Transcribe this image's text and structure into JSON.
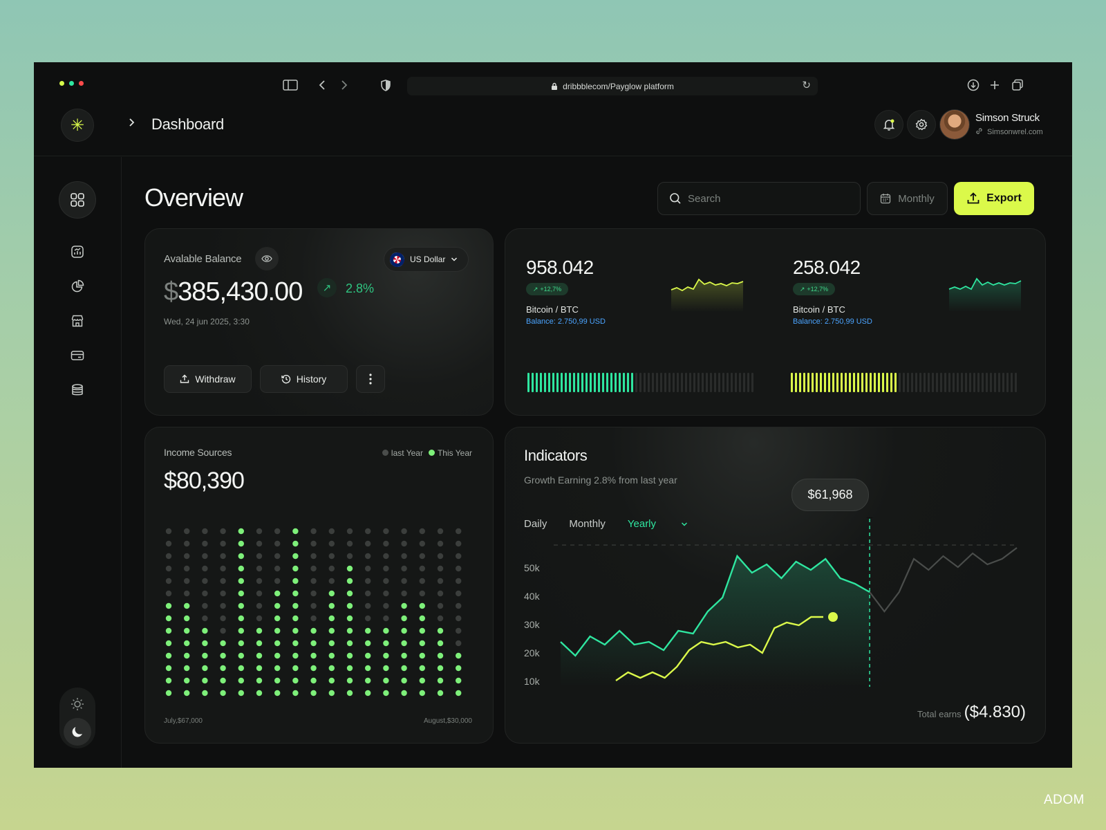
{
  "colors": {
    "accent": "#dbf94a",
    "green": "#2fe6a0",
    "positive": "#2fc581",
    "link": "#4ba4ff"
  },
  "browser": {
    "url": "dribbblecom/Payglow platform"
  },
  "header": {
    "breadcrumb": "Dashboard",
    "user": {
      "name": "Simson Struck",
      "email": "Simsonwrel.com"
    }
  },
  "sidebar": {
    "items": [
      "grid-icon",
      "chart-icon",
      "pie-icon",
      "store-icon",
      "card-icon",
      "database-icon"
    ],
    "bottom": [
      "user-icon",
      "logout-icon"
    ]
  },
  "main": {
    "title": "Overview",
    "search_placeholder": "Search",
    "period": "Monthly",
    "export": "Export"
  },
  "balance": {
    "label": "Avalable Balance",
    "currency": "US Dollar",
    "symbol": "$",
    "amount": "385,430.00",
    "change": "2.8%",
    "date": "Wed, 24 jun 2025, 3:30",
    "withdraw": "Withdraw",
    "history": "History"
  },
  "coins": [
    {
      "value": "958.042",
      "badge": "+12,7%",
      "name": "Bitcoin / BTC",
      "balance": "Balance: 2.750,99 USD",
      "fill": 0.48
    },
    {
      "value": "258.042",
      "badge": "+12,7%",
      "name": "Bitcoin / BTC",
      "balance": "Balance: 2.750,99 USD",
      "fill": 0.48
    }
  ],
  "income": {
    "label": "Income Sources",
    "amount": "$80,390",
    "legend": [
      "last Year",
      "This Year"
    ],
    "start": "July,$67,000",
    "end": "August,$30,000"
  },
  "indicators": {
    "title": "Indicators",
    "subtitle": "Growth Earning 2.8% from last year",
    "tabs": [
      "Daily",
      "Monthly",
      "Yearly"
    ],
    "tooltip": "$61,968",
    "total_label": "Total earns",
    "total_value": "($4.830)",
    "yticks": [
      "50k",
      "40k",
      "30k",
      "20k",
      "10k"
    ]
  },
  "chart_data": {
    "type": "line",
    "y_ticks": [
      "50k",
      "40k",
      "30k",
      "20k",
      "10k"
    ],
    "series": [
      {
        "values": [
          15,
          10,
          17,
          14,
          19,
          14,
          15,
          12,
          19,
          18,
          26,
          31,
          46,
          40,
          43,
          38,
          44,
          41,
          45,
          38,
          36,
          33,
          26,
          33,
          45,
          41,
          46,
          42,
          47,
          43,
          45,
          49
        ]
      },
      {
        "values": [
          1,
          4,
          2,
          4,
          2,
          6,
          12,
          15,
          14,
          15,
          13,
          14,
          11,
          20,
          22,
          21,
          24,
          24
        ]
      }
    ],
    "highlight": {
      "label": "$61,968"
    }
  },
  "watermark": "ADOM"
}
